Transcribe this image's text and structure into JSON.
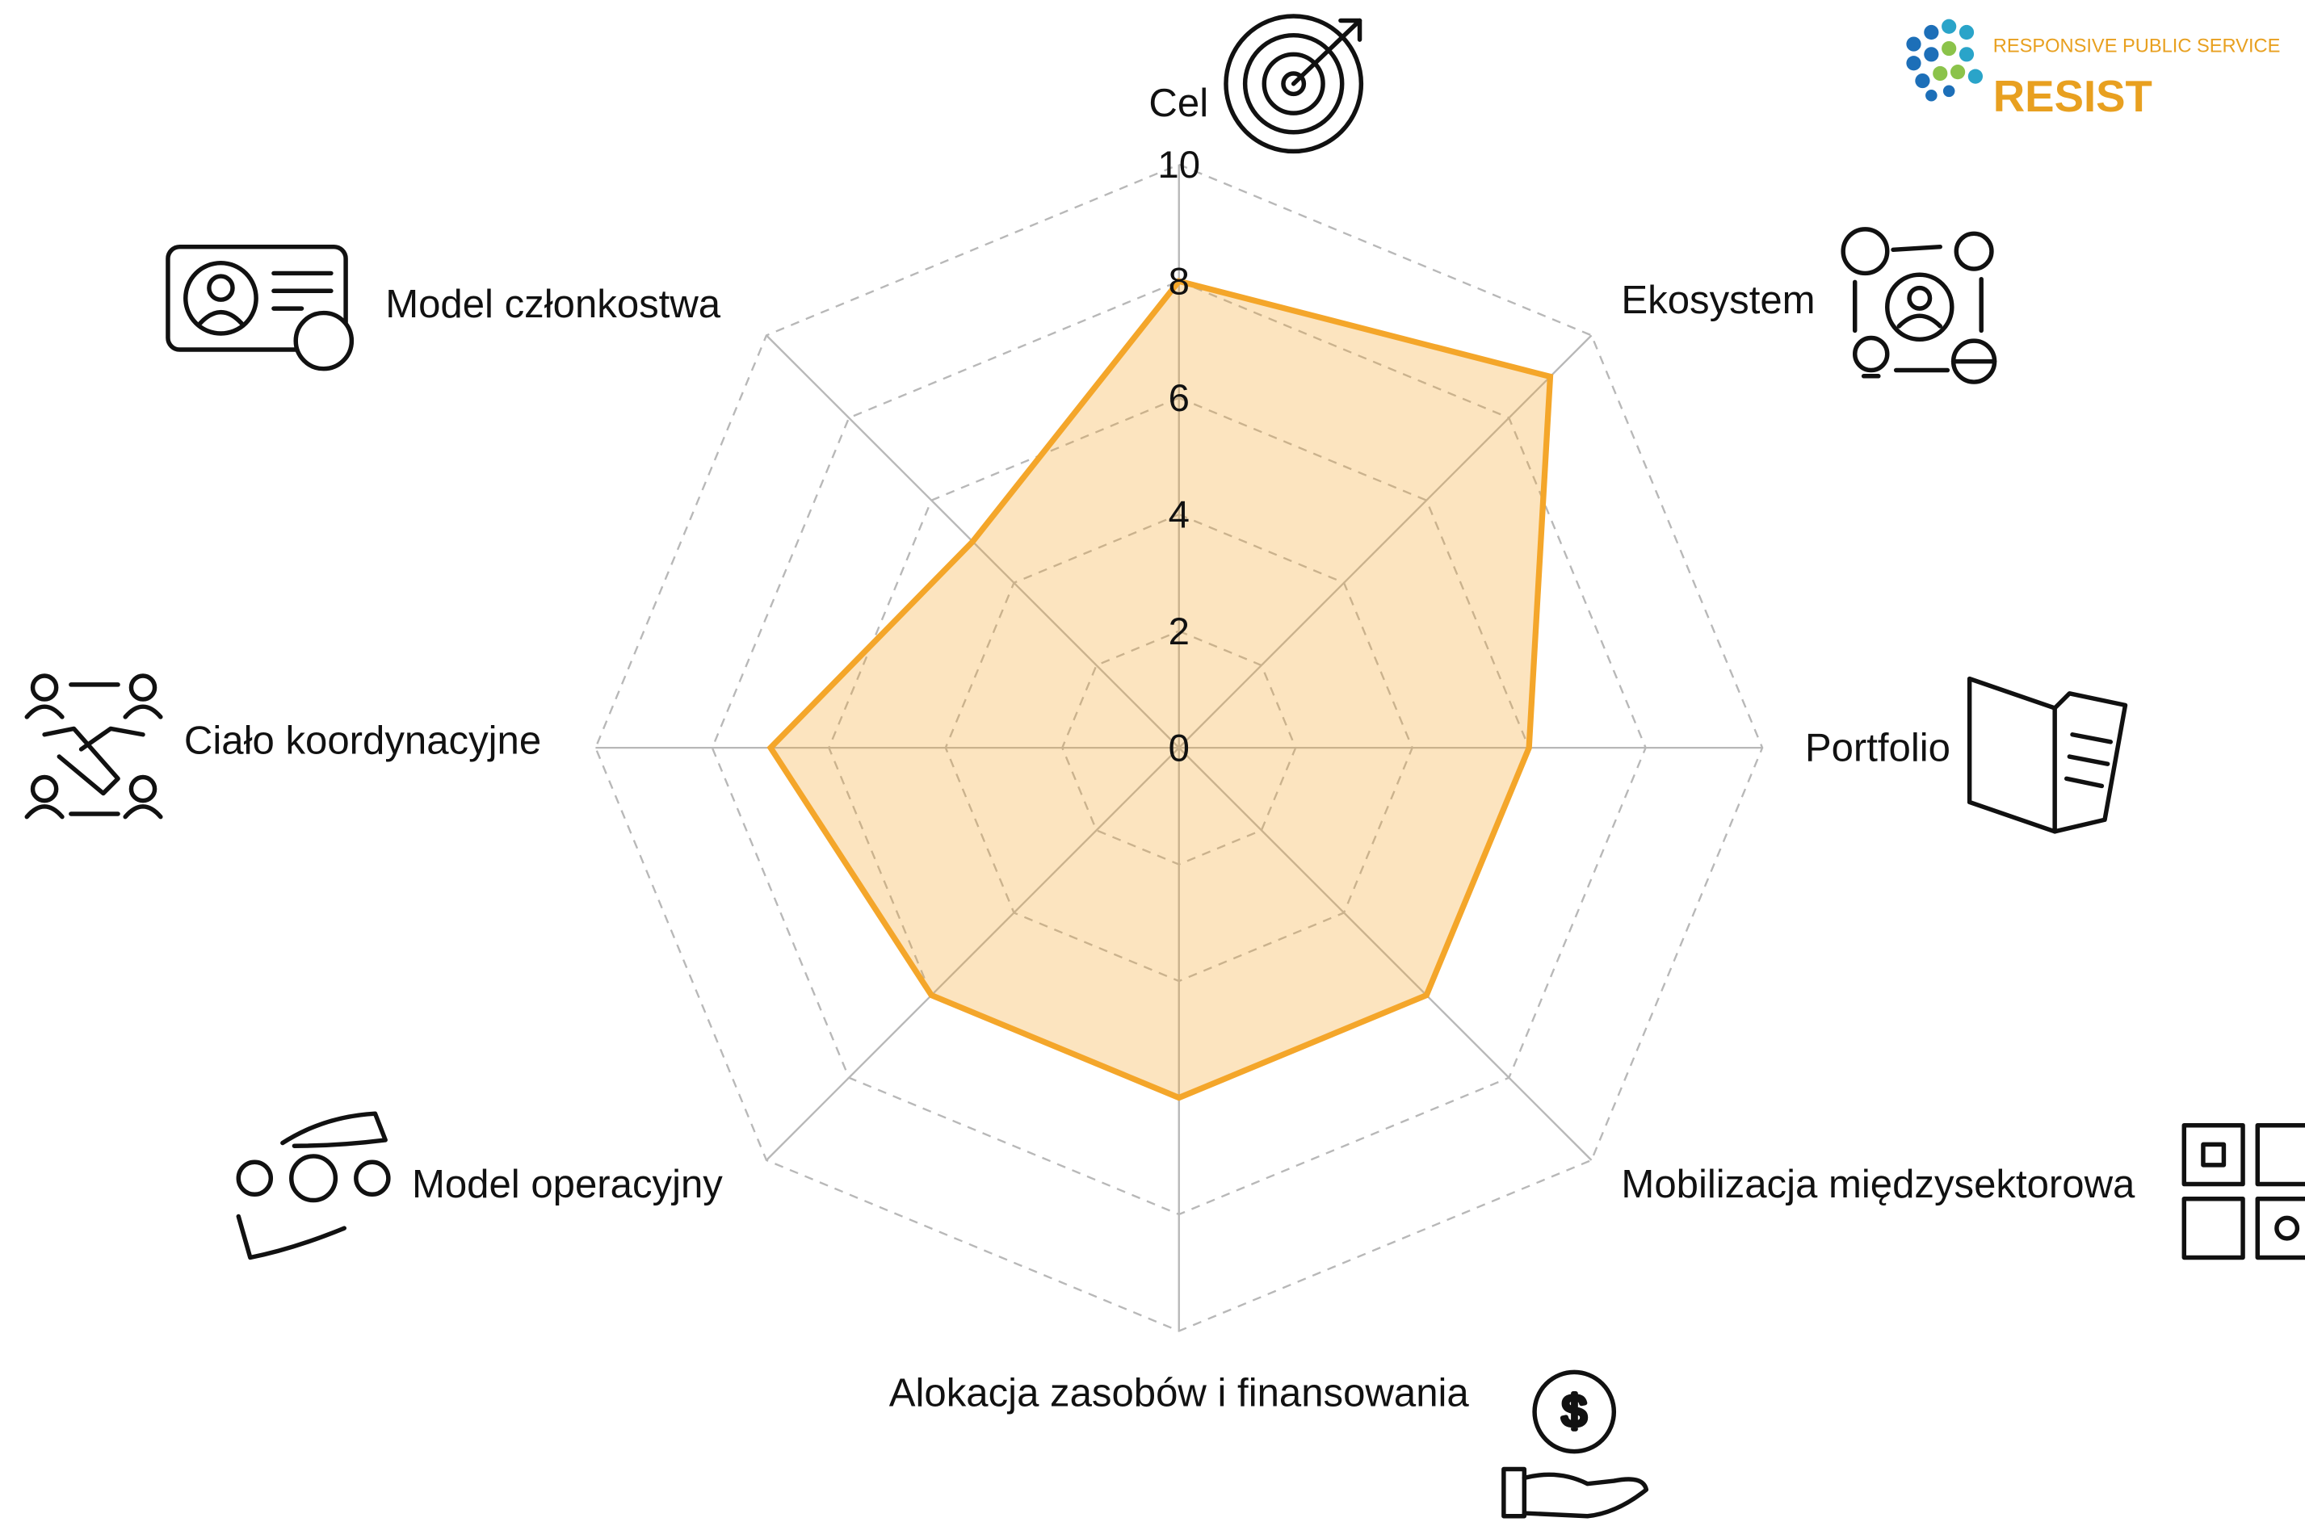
{
  "chart_data": {
    "type": "radar",
    "categories": [
      "Cel",
      "Ekosystem",
      "Portfolio",
      "Mobilizacja międzysektorowa",
      "Alokacja zasobów i finansowania",
      "Model operacyjny",
      "Ciało koordynacyjne",
      "Model członkostwa"
    ],
    "values": [
      8,
      9,
      6,
      6,
      6,
      6,
      7,
      5
    ],
    "color": "#f4a62a",
    "ylim": [
      0,
      10
    ],
    "yticks": [
      0,
      2,
      4,
      6,
      8,
      10
    ],
    "grid": true
  },
  "logo": {
    "tagline": "RESPONSIVE PUBLIC SERVICE",
    "name": "RESIST"
  }
}
